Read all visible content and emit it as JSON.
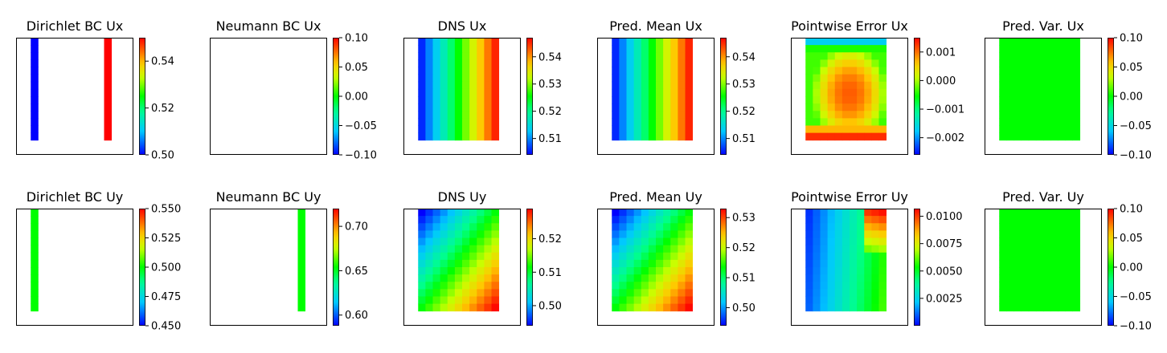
{
  "chart_data": [
    {
      "type": "heatmap",
      "title": "Dirichlet BC Ux",
      "colorbar": {
        "ticks": [
          "0.50",
          "0.52",
          "0.54"
        ],
        "range": [
          0.5,
          0.55
        ]
      },
      "field": {
        "kind": "bc",
        "strips": [
          {
            "col": 2,
            "value": 0.5
          },
          {
            "col": 12,
            "value": 0.55
          }
        ]
      }
    },
    {
      "type": "heatmap",
      "title": "Neumann BC Ux",
      "colorbar": {
        "ticks": [
          "0.10",
          "0.05",
          "0.00",
          "−0.05",
          "−0.10"
        ],
        "range": [
          -0.1,
          0.1
        ]
      },
      "field": {
        "kind": "empty"
      }
    },
    {
      "type": "heatmap",
      "title": "DNS Ux",
      "colorbar": {
        "ticks": [
          "0.54",
          "0.53",
          "0.52",
          "0.51"
        ],
        "range": [
          0.504,
          0.547
        ]
      },
      "field": {
        "kind": "gradx"
      }
    },
    {
      "type": "heatmap",
      "title": "Pred. Mean Ux",
      "colorbar": {
        "ticks": [
          "0.54",
          "0.53",
          "0.52",
          "0.51"
        ],
        "range": [
          0.504,
          0.547
        ]
      },
      "field": {
        "kind": "gradx"
      }
    },
    {
      "type": "heatmap",
      "title": "Pointwise Error Ux",
      "colorbar": {
        "ticks": [
          "0.001",
          "0.000",
          "−0.001",
          "−0.002"
        ],
        "range": [
          -0.0026,
          0.0015
        ]
      },
      "field": {
        "kind": "errx"
      }
    },
    {
      "type": "heatmap",
      "title": "Pred. Var. Ux",
      "colorbar": {
        "ticks": [
          "0.10",
          "0.05",
          "0.00",
          "−0.05",
          "−0.10"
        ],
        "range": [
          -0.1,
          0.1
        ]
      },
      "field": {
        "kind": "const",
        "value": 0.0
      }
    },
    {
      "type": "heatmap",
      "title": "Dirichlet BC Uy",
      "colorbar": {
        "ticks": [
          "0.550",
          "0.525",
          "0.500",
          "0.475",
          "0.450"
        ],
        "range": [
          0.45,
          0.55
        ]
      },
      "field": {
        "kind": "bc",
        "strips": [
          {
            "col": 2,
            "value": 0.5
          }
        ]
      }
    },
    {
      "type": "heatmap",
      "title": "Neumann BC Uy",
      "colorbar": {
        "ticks": [
          "0.70",
          "0.65",
          "0.60"
        ],
        "range": [
          0.588,
          0.72
        ]
      },
      "field": {
        "kind": "bc",
        "strips": [
          {
            "col": 12,
            "value": 0.654
          }
        ]
      }
    },
    {
      "type": "heatmap",
      "title": "DNS Uy",
      "colorbar": {
        "ticks": [
          "0.52",
          "0.51",
          "0.50"
        ],
        "range": [
          0.494,
          0.529
        ]
      },
      "field": {
        "kind": "diag"
      }
    },
    {
      "type": "heatmap",
      "title": "Pred. Mean Uy",
      "colorbar": {
        "ticks": [
          "0.53",
          "0.52",
          "0.51",
          "0.50"
        ],
        "range": [
          0.494,
          0.533
        ]
      },
      "field": {
        "kind": "diag"
      }
    },
    {
      "type": "heatmap",
      "title": "Pointwise Error Uy",
      "colorbar": {
        "ticks": [
          "0.0100",
          "0.0075",
          "0.0050",
          "0.0025"
        ],
        "range": [
          0.0,
          0.0107
        ]
      },
      "field": {
        "kind": "erry"
      }
    },
    {
      "type": "heatmap",
      "title": "Pred. Var. Uy",
      "colorbar": {
        "ticks": [
          "0.10",
          "0.05",
          "0.00",
          "−0.05",
          "−0.10"
        ],
        "range": [
          -0.1,
          0.1
        ]
      },
      "field": {
        "kind": "const",
        "value": 0.0
      }
    }
  ]
}
